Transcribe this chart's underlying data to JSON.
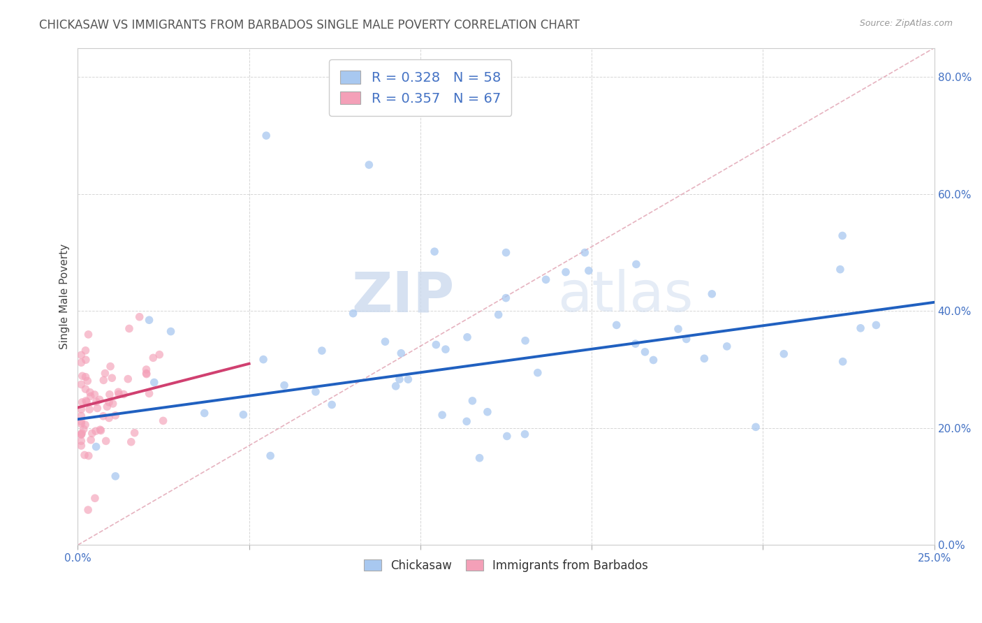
{
  "title": "CHICKASAW VS IMMIGRANTS FROM BARBADOS SINGLE MALE POVERTY CORRELATION CHART",
  "source": "Source: ZipAtlas.com",
  "ylabel": "Single Male Poverty",
  "legend_label1": "Chickasaw",
  "legend_label2": "Immigrants from Barbados",
  "r1": 0.328,
  "n1": 58,
  "r2": 0.357,
  "n2": 67,
  "xmin": 0.0,
  "xmax": 0.25,
  "ymin": 0.0,
  "ymax": 0.85,
  "color_blue": "#A8C8F0",
  "color_pink": "#F4A0B8",
  "color_blue_line": "#2060C0",
  "color_pink_line": "#D04070",
  "color_diag": "#E0A0B0",
  "watermark_zip": "ZIP",
  "watermark_atlas": "atlas",
  "title_fontsize": 12,
  "tick_label_color": "#4472C4",
  "blue_trendline_x0": 0.0,
  "blue_trendline_y0": 0.215,
  "blue_trendline_x1": 0.25,
  "blue_trendline_y1": 0.415,
  "pink_trendline_x0": 0.0,
  "pink_trendline_y0": 0.235,
  "pink_trendline_x1": 0.05,
  "pink_trendline_y1": 0.31
}
